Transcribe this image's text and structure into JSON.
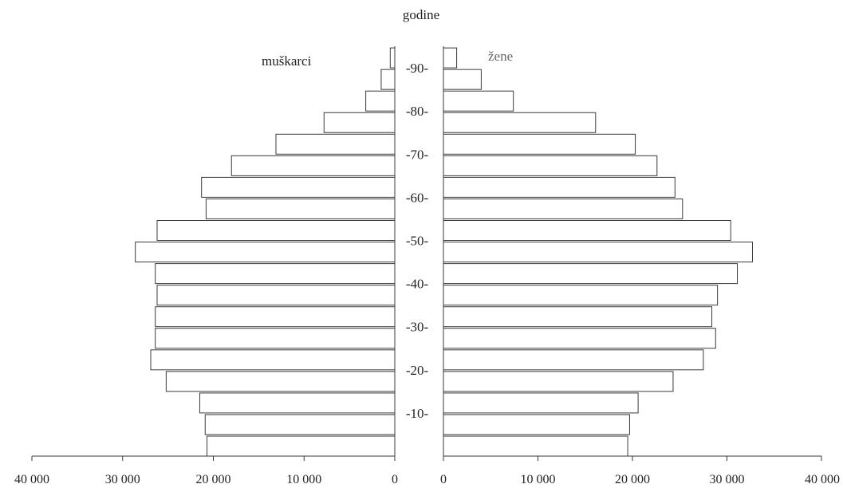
{
  "chart_data": {
    "type": "bar",
    "orientation": "horizontal",
    "title": "godine",
    "grid": false,
    "series": [
      {
        "name": "muškarci",
        "values": [
          20700,
          20900,
          21500,
          25200,
          26900,
          26400,
          26400,
          26200,
          26400,
          28600,
          26200,
          20800,
          21300,
          18000,
          13100,
          7800,
          3200,
          1500,
          500
        ]
      },
      {
        "name": "žene",
        "values": [
          19500,
          19700,
          20600,
          24300,
          27500,
          28800,
          28400,
          29000,
          31100,
          32700,
          30400,
          25300,
          24500,
          22600,
          20300,
          16100,
          7400,
          4000,
          1400
        ]
      }
    ],
    "age_labels": [
      "-10-",
      "-20-",
      "-30-",
      "-40-",
      "-50-",
      "-60-",
      "-70-",
      "-80-",
      "-90-"
    ],
    "x_ticks_left": [
      "40 000",
      "30 000",
      "20 000",
      "10 000",
      "0"
    ],
    "x_ticks_right": [
      "0",
      "10 000",
      "20 000",
      "30 000",
      "40 000"
    ],
    "xlim": [
      0,
      40000
    ]
  }
}
